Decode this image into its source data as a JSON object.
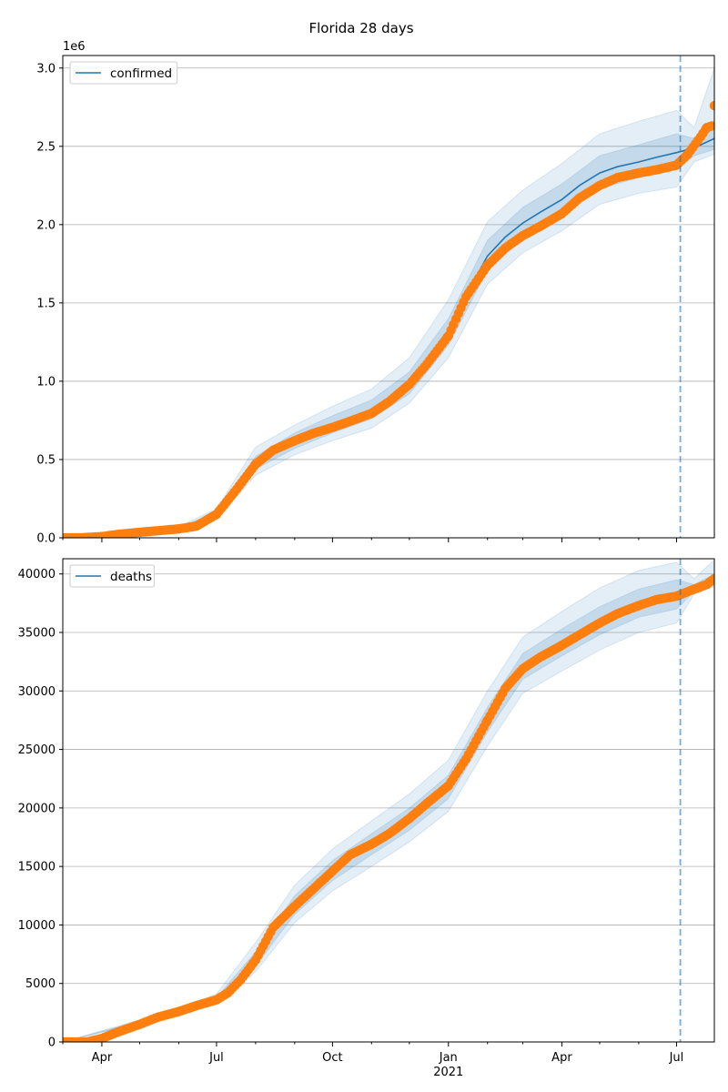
{
  "title": "Florida 28 days",
  "chart_data": [
    {
      "type": "line",
      "name": "confirmed",
      "legend": "confirmed",
      "legend_position": "top-left",
      "grid": "y",
      "offset_label": "1e6",
      "y_scale": 1000000,
      "ylim": [
        0,
        3080000
      ],
      "yticks": [
        0,
        500000,
        1000000,
        1500000,
        2000000,
        2500000,
        3000000
      ],
      "ytick_labels": [
        "0.0",
        "0.5",
        "1.0",
        "1.5",
        "2.0",
        "2.5",
        "3.0"
      ],
      "x_range": [
        "2020-03-01",
        "2021-07-31"
      ],
      "forecast_start": "2021-07-04",
      "colors": {
        "line": "#1f77b4",
        "band": "#1f77b4",
        "observed": "#ff7f0e",
        "vline": "#1f77b4"
      },
      "model_line": [
        [
          "2020-03-01",
          0
        ],
        [
          "2020-04-01",
          10000
        ],
        [
          "2020-05-01",
          35000
        ],
        [
          "2020-06-01",
          60000
        ],
        [
          "2020-06-15",
          80000
        ],
        [
          "2020-07-01",
          150000
        ],
        [
          "2020-07-15",
          300000
        ],
        [
          "2020-08-01",
          480000
        ],
        [
          "2020-08-15",
          560000
        ],
        [
          "2020-09-01",
          620000
        ],
        [
          "2020-09-15",
          670000
        ],
        [
          "2020-10-01",
          720000
        ],
        [
          "2020-10-15",
          760000
        ],
        [
          "2020-11-01",
          810000
        ],
        [
          "2020-11-15",
          880000
        ],
        [
          "2020-12-01",
          980000
        ],
        [
          "2020-12-15",
          1100000
        ],
        [
          "2021-01-01",
          1300000
        ],
        [
          "2021-01-15",
          1550000
        ],
        [
          "2021-02-01",
          1800000
        ],
        [
          "2021-02-15",
          1920000
        ],
        [
          "2021-03-01",
          2010000
        ],
        [
          "2021-03-15",
          2080000
        ],
        [
          "2021-04-01",
          2160000
        ],
        [
          "2021-04-15",
          2250000
        ],
        [
          "2021-05-01",
          2330000
        ],
        [
          "2021-05-15",
          2370000
        ],
        [
          "2021-06-01",
          2400000
        ],
        [
          "2021-06-15",
          2430000
        ],
        [
          "2021-07-01",
          2460000
        ],
        [
          "2021-07-15",
          2490000
        ],
        [
          "2021-07-31",
          2550000
        ]
      ],
      "band_inner": [
        [
          "2020-03-01",
          0,
          0
        ],
        [
          "2020-06-01",
          55000,
          65000
        ],
        [
          "2020-07-01",
          135000,
          165000
        ],
        [
          "2020-08-01",
          440000,
          520000
        ],
        [
          "2020-09-01",
          570000,
          670000
        ],
        [
          "2020-10-01",
          670000,
          780000
        ],
        [
          "2020-11-01",
          760000,
          880000
        ],
        [
          "2020-12-01",
          920000,
          1060000
        ],
        [
          "2021-01-01",
          1230000,
          1400000
        ],
        [
          "2021-02-01",
          1710000,
          1900000
        ],
        [
          "2021-03-01",
          1910000,
          2110000
        ],
        [
          "2021-04-01",
          2060000,
          2260000
        ],
        [
          "2021-05-01",
          2230000,
          2440000
        ],
        [
          "2021-06-01",
          2300000,
          2510000
        ],
        [
          "2021-07-01",
          2350000,
          2580000
        ],
        [
          "2021-07-15",
          2440000,
          2550000
        ],
        [
          "2021-07-31",
          2480000,
          2640000
        ]
      ],
      "band_outer": [
        [
          "2020-03-01",
          0,
          0
        ],
        [
          "2020-06-01",
          50000,
          72000
        ],
        [
          "2020-07-01",
          120000,
          185000
        ],
        [
          "2020-08-01",
          400000,
          580000
        ],
        [
          "2020-09-01",
          530000,
          720000
        ],
        [
          "2020-10-01",
          620000,
          840000
        ],
        [
          "2020-11-01",
          700000,
          950000
        ],
        [
          "2020-12-01",
          860000,
          1150000
        ],
        [
          "2021-01-01",
          1150000,
          1520000
        ],
        [
          "2021-02-01",
          1620000,
          2020000
        ],
        [
          "2021-03-01",
          1820000,
          2220000
        ],
        [
          "2021-04-01",
          1960000,
          2390000
        ],
        [
          "2021-05-01",
          2130000,
          2580000
        ],
        [
          "2021-06-01",
          2200000,
          2660000
        ],
        [
          "2021-07-01",
          2240000,
          2730000
        ],
        [
          "2021-07-15",
          2400000,
          2620000
        ],
        [
          "2021-07-31",
          2450000,
          3000000
        ]
      ],
      "observed": [
        [
          "2020-03-01",
          0
        ],
        [
          "2020-03-15",
          0
        ],
        [
          "2020-04-01",
          8000
        ],
        [
          "2020-04-15",
          23000
        ],
        [
          "2020-05-01",
          35000
        ],
        [
          "2020-05-15",
          45000
        ],
        [
          "2020-06-01",
          57000
        ],
        [
          "2020-06-15",
          75000
        ],
        [
          "2020-07-01",
          150000
        ],
        [
          "2020-07-15",
          290000
        ],
        [
          "2020-08-01",
          470000
        ],
        [
          "2020-08-15",
          560000
        ],
        [
          "2020-09-01",
          620000
        ],
        [
          "2020-09-15",
          665000
        ],
        [
          "2020-10-01",
          705000
        ],
        [
          "2020-10-15",
          745000
        ],
        [
          "2020-11-01",
          795000
        ],
        [
          "2020-11-15",
          870000
        ],
        [
          "2020-12-01",
          980000
        ],
        [
          "2020-12-15",
          1110000
        ],
        [
          "2021-01-01",
          1290000
        ],
        [
          "2021-01-15",
          1540000
        ],
        [
          "2021-02-01",
          1740000
        ],
        [
          "2021-02-15",
          1850000
        ],
        [
          "2021-03-01",
          1930000
        ],
        [
          "2021-03-15",
          1990000
        ],
        [
          "2021-04-01",
          2070000
        ],
        [
          "2021-04-15",
          2170000
        ],
        [
          "2021-05-01",
          2250000
        ],
        [
          "2021-05-15",
          2300000
        ],
        [
          "2021-06-01",
          2330000
        ],
        [
          "2021-06-15",
          2350000
        ],
        [
          "2021-07-01",
          2380000
        ],
        [
          "2021-07-10",
          2450000
        ],
        [
          "2021-07-20",
          2560000
        ],
        [
          "2021-07-25",
          2620000
        ],
        [
          "2021-07-29",
          2630000
        ],
        [
          "2021-07-31",
          2760000
        ]
      ]
    },
    {
      "type": "line",
      "name": "deaths",
      "legend": "deaths",
      "legend_position": "top-left",
      "grid": "y",
      "offset_label": "",
      "y_scale": 1,
      "ylim": [
        0,
        41300
      ],
      "yticks": [
        0,
        5000,
        10000,
        15000,
        20000,
        25000,
        30000,
        35000,
        40000
      ],
      "ytick_labels": [
        "0",
        "5000",
        "10000",
        "15000",
        "20000",
        "25000",
        "30000",
        "35000",
        "40000"
      ],
      "x_range": [
        "2020-03-01",
        "2021-07-31"
      ],
      "forecast_start": "2021-07-04",
      "colors": {
        "line": "#1f77b4",
        "band": "#1f77b4",
        "observed": "#ff7f0e",
        "vline": "#1f77b4"
      },
      "model_line": [
        [
          "2020-03-01",
          0
        ],
        [
          "2020-04-01",
          150
        ],
        [
          "2020-04-15",
          800
        ],
        [
          "2020-05-01",
          1400
        ],
        [
          "2020-05-15",
          2000
        ],
        [
          "2020-06-01",
          2600
        ],
        [
          "2020-06-15",
          3100
        ],
        [
          "2020-07-01",
          3600
        ],
        [
          "2020-07-15",
          4600
        ],
        [
          "2020-08-01",
          7000
        ],
        [
          "2020-08-15",
          9700
        ],
        [
          "2020-09-01",
          11600
        ],
        [
          "2020-09-15",
          13000
        ],
        [
          "2020-10-01",
          14600
        ],
        [
          "2020-10-15",
          16000
        ],
        [
          "2020-11-01",
          16900
        ],
        [
          "2020-11-15",
          17800
        ],
        [
          "2020-12-01",
          19000
        ],
        [
          "2020-12-15",
          20300
        ],
        [
          "2021-01-01",
          21800
        ],
        [
          "2021-01-15",
          24200
        ],
        [
          "2021-02-01",
          27500
        ],
        [
          "2021-02-15",
          30300
        ],
        [
          "2021-03-01",
          32000
        ],
        [
          "2021-03-15",
          33000
        ],
        [
          "2021-04-01",
          34000
        ],
        [
          "2021-04-15",
          34900
        ],
        [
          "2021-05-01",
          35900
        ],
        [
          "2021-05-15",
          36700
        ],
        [
          "2021-06-01",
          37400
        ],
        [
          "2021-06-15",
          37900
        ],
        [
          "2021-07-01",
          38200
        ],
        [
          "2021-07-15",
          38800
        ],
        [
          "2021-07-31",
          39500
        ]
      ],
      "band_inner": [
        [
          "2020-03-01",
          0,
          0
        ],
        [
          "2020-06-01",
          2500,
          2700
        ],
        [
          "2020-07-01",
          3400,
          3800
        ],
        [
          "2020-08-01",
          6500,
          7700
        ],
        [
          "2020-09-01",
          10900,
          12500
        ],
        [
          "2020-10-01",
          13800,
          15500
        ],
        [
          "2020-11-01",
          16000,
          17800
        ],
        [
          "2020-12-01",
          18100,
          20000
        ],
        [
          "2021-01-01",
          20800,
          22800
        ],
        [
          "2021-02-01",
          26500,
          28600
        ],
        [
          "2021-03-01",
          31000,
          33200
        ],
        [
          "2021-04-01",
          33000,
          35300
        ],
        [
          "2021-05-01",
          34800,
          37200
        ],
        [
          "2021-06-01",
          36300,
          38700
        ],
        [
          "2021-07-01",
          37000,
          39500
        ],
        [
          "2021-07-15",
          38500,
          39100
        ],
        [
          "2021-07-31",
          39100,
          40000
        ]
      ],
      "band_outer": [
        [
          "2020-03-01",
          0,
          0
        ],
        [
          "2020-06-01",
          2400,
          2850
        ],
        [
          "2020-07-01",
          3200,
          4100
        ],
        [
          "2020-08-01",
          6000,
          8500
        ],
        [
          "2020-09-01",
          10200,
          13400
        ],
        [
          "2020-10-01",
          12900,
          16500
        ],
        [
          "2020-11-01",
          15000,
          18900
        ],
        [
          "2020-12-01",
          17100,
          21200
        ],
        [
          "2021-01-01",
          19700,
          24100
        ],
        [
          "2021-02-01",
          25300,
          30000
        ],
        [
          "2021-03-01",
          29800,
          34600
        ],
        [
          "2021-04-01",
          31700,
          36800
        ],
        [
          "2021-05-01",
          33500,
          38800
        ],
        [
          "2021-06-01",
          35000,
          40300
        ],
        [
          "2021-07-01",
          35800,
          41000
        ],
        [
          "2021-07-15",
          38300,
          39600
        ],
        [
          "2021-07-31",
          38900,
          41200
        ]
      ],
      "observed": [
        [
          "2020-03-01",
          0
        ],
        [
          "2020-03-20",
          0
        ],
        [
          "2020-04-01",
          300
        ],
        [
          "2020-04-15",
          900
        ],
        [
          "2020-05-01",
          1500
        ],
        [
          "2020-05-15",
          2100
        ],
        [
          "2020-06-01",
          2600
        ],
        [
          "2020-06-15",
          3100
        ],
        [
          "2020-07-01",
          3600
        ],
        [
          "2020-07-10",
          4200
        ],
        [
          "2020-07-20",
          5300
        ],
        [
          "2020-08-01",
          7000
        ],
        [
          "2020-08-15",
          9800
        ],
        [
          "2020-09-01",
          11600
        ],
        [
          "2020-09-15",
          13000
        ],
        [
          "2020-10-01",
          14600
        ],
        [
          "2020-10-15",
          16000
        ],
        [
          "2020-11-01",
          16900
        ],
        [
          "2020-11-15",
          17800
        ],
        [
          "2020-12-01",
          19100
        ],
        [
          "2020-12-15",
          20400
        ],
        [
          "2021-01-01",
          21900
        ],
        [
          "2021-01-15",
          24200
        ],
        [
          "2021-02-01",
          27500
        ],
        [
          "2021-02-15",
          30200
        ],
        [
          "2021-03-01",
          31900
        ],
        [
          "2021-03-15",
          32900
        ],
        [
          "2021-04-01",
          33900
        ],
        [
          "2021-04-15",
          34800
        ],
        [
          "2021-05-01",
          35800
        ],
        [
          "2021-05-15",
          36600
        ],
        [
          "2021-06-01",
          37300
        ],
        [
          "2021-06-15",
          37800
        ],
        [
          "2021-07-01",
          38100
        ],
        [
          "2021-07-15",
          38700
        ],
        [
          "2021-07-25",
          39100
        ],
        [
          "2021-07-31",
          39600
        ]
      ]
    }
  ],
  "x_axis": {
    "ticks": [
      {
        "date": "2020-04-01",
        "label": "Apr"
      },
      {
        "date": "2020-07-01",
        "label": "Jul"
      },
      {
        "date": "2020-10-01",
        "label": "Oct"
      },
      {
        "date": "2021-01-01",
        "label": "Jan"
      },
      {
        "date": "2021-04-01",
        "label": "Apr"
      },
      {
        "date": "2021-07-01",
        "label": "Jul"
      }
    ],
    "year_label": "2021",
    "year_label_date": "2021-01-01"
  }
}
